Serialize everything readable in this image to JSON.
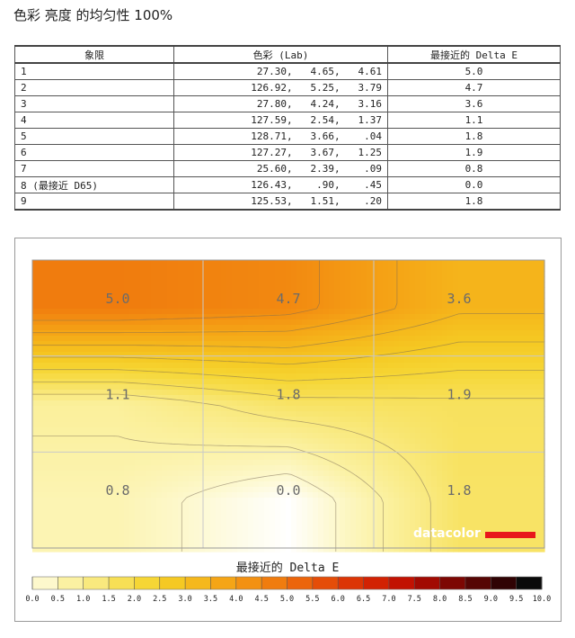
{
  "page": {
    "title": "色彩 亮度 的均匀性 100%"
  },
  "table": {
    "headers": [
      "象限",
      "色彩 (Lab)",
      "最接近的 Delta E"
    ],
    "rows": [
      {
        "q": "1",
        "lab": "27.30,   4.65,   4.61",
        "de": "5.0"
      },
      {
        "q": "2",
        "lab": "126.92,   5.25,   3.79",
        "de": "4.7"
      },
      {
        "q": "3",
        "lab": "27.80,   4.24,   3.16",
        "de": "3.6"
      },
      {
        "q": "4",
        "lab": "127.59,   2.54,   1.37",
        "de": "1.1"
      },
      {
        "q": "5",
        "lab": "128.71,   3.66,    .04",
        "de": "1.8"
      },
      {
        "q": "6",
        "lab": "127.27,   3.67,   1.25",
        "de": "1.9"
      },
      {
        "q": "7",
        "lab": "25.60,   2.39,    .09",
        "de": "0.8"
      },
      {
        "q": "8 (最接近 D65)",
        "lab": "126.43,    .90,    .45",
        "de": "0.0"
      },
      {
        "q": "9",
        "lab": "125.53,   1.51,    .20",
        "de": "1.8"
      }
    ]
  },
  "brand": "datacolor",
  "chart_data": {
    "type": "heatmap",
    "title": "最接近的 Delta E",
    "grid_rows": 3,
    "grid_cols": 3,
    "values": [
      [
        5.0,
        4.7,
        3.6
      ],
      [
        1.1,
        1.8,
        1.9
      ],
      [
        0.8,
        0.0,
        1.8
      ]
    ],
    "labels": [
      [
        "5.0",
        "4.7",
        "3.6"
      ],
      [
        "1.1",
        "1.8",
        "1.9"
      ],
      [
        "0.8",
        "0.0",
        "1.8"
      ]
    ],
    "scale_ticks": [
      "0.0",
      "0.5",
      "1.0",
      "1.5",
      "2.0",
      "2.5",
      "3.0",
      "3.5",
      "4.0",
      "4.5",
      "5.0",
      "5.5",
      "6.0",
      "6.5",
      "7.0",
      "7.5",
      "8.0",
      "8.5",
      "9.0",
      "9.5",
      "10.0"
    ],
    "scale_range": [
      0,
      10
    ],
    "scale_colors": [
      "#ffffff",
      "#fdf8cc",
      "#fbf1a2",
      "#f9e97e",
      "#f7df55",
      "#f6d635",
      "#f5c923",
      "#f5b81c",
      "#f5a516",
      "#f39112",
      "#f07c0e",
      "#ec650b",
      "#e54d08",
      "#dc3505",
      "#d22203",
      "#c21202",
      "#a20a02",
      "#7d0703",
      "#560504",
      "#300304",
      "#0a0a0a"
    ],
    "brand_accent": "#e8161b"
  }
}
